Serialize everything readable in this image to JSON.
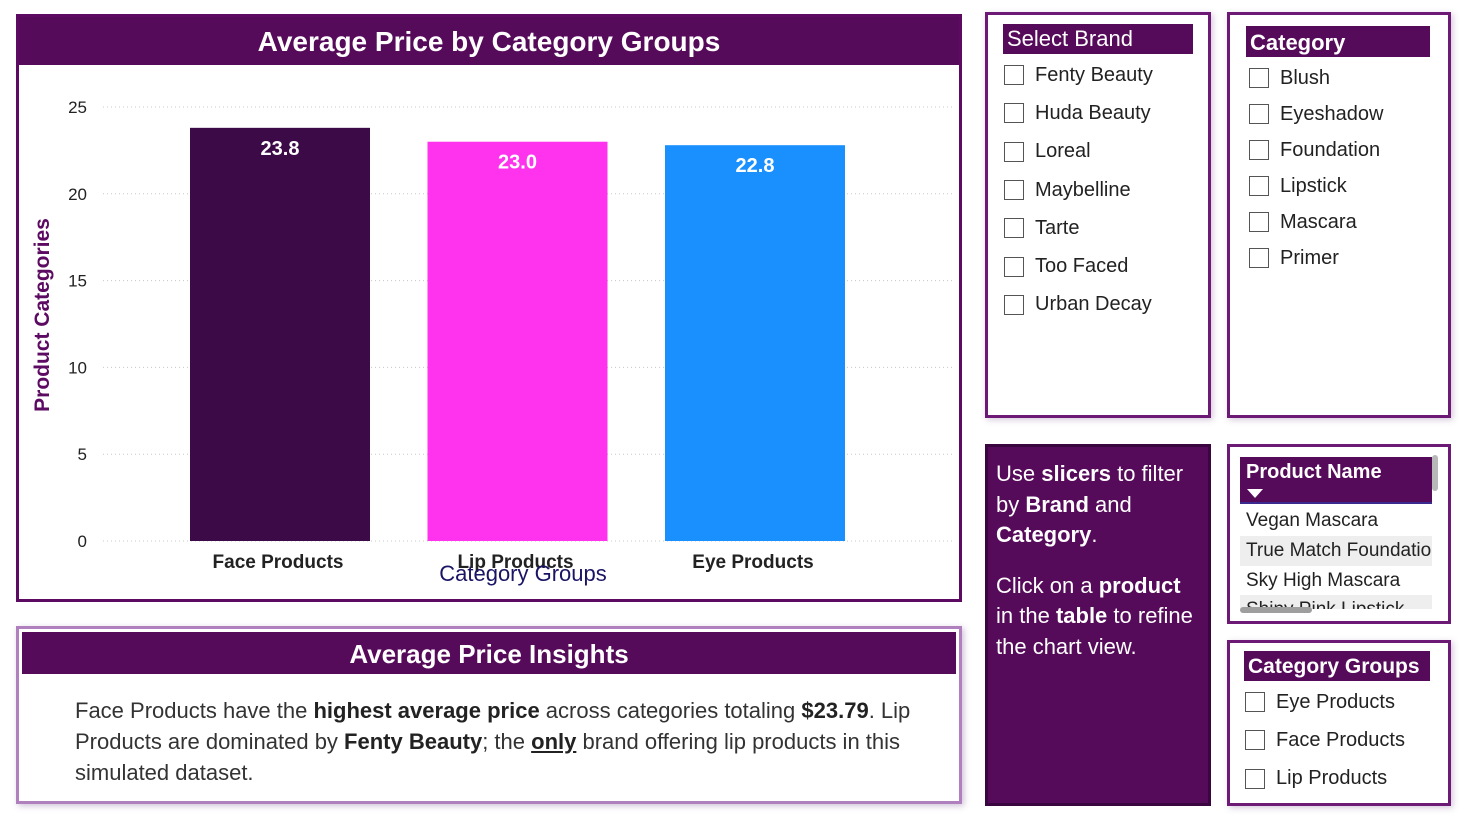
{
  "chart_panel": {
    "title": "Average Price by Category Groups"
  },
  "chart_data": {
    "type": "bar",
    "title": "Average Price by Category Groups",
    "categories": [
      "Face Products",
      "Lip Products",
      "Eye Products"
    ],
    "values": [
      23.8,
      23.0,
      22.8
    ],
    "value_labels": [
      "23.8",
      "23.0",
      "22.8"
    ],
    "colors": [
      "#3c0a46",
      "#ff33ee",
      "#1a90ff"
    ],
    "xlabel": "Category Groups",
    "ylabel": "Product Categories",
    "ylim": [
      0,
      25
    ],
    "yticks": [
      "0",
      "5",
      "10",
      "15",
      "20",
      "25"
    ],
    "grid": true
  },
  "insights": {
    "title": "Average Price Insights",
    "t1": "Face Products have the ",
    "b1": "highest average price",
    "t2": " across categories totaling ",
    "b2": "$23.79",
    "t3": ". Lip Products are dominated by ",
    "b3": "Fenty Beauty",
    "t4": "; the ",
    "u1": "only",
    "t5": " brand offering lip products in this simulated dataset."
  },
  "brand_slicer": {
    "title": "Select Brand",
    "items": [
      "Fenty Beauty",
      "Huda Beauty",
      "Loreal",
      "Maybelline",
      "Tarte",
      "Too Faced",
      "Urban Decay"
    ]
  },
  "category_slicer": {
    "title": "Category",
    "items": [
      "Blush",
      "Eyeshadow",
      "Foundation",
      "Lipstick",
      "Mascara",
      "Primer"
    ]
  },
  "help": {
    "p1_a": "Use ",
    "p1_b": "slicers",
    "p1_c": " to filter by ",
    "p1_d": "Brand",
    "p1_e": " and ",
    "p1_f": "Category",
    "p1_g": ".",
    "p2_a": "Click on a ",
    "p2_b": "product",
    "p2_c": " in the ",
    "p2_d": "table",
    "p2_e": " to refine the chart view."
  },
  "product_table": {
    "header": "Product Name",
    "rows": [
      "Vegan Mascara",
      "True Match Foundation",
      "Sky High Mascara",
      "Shiny Pink Lipstick"
    ]
  },
  "groups_slicer": {
    "title": "Category Groups",
    "items": [
      "Eye Products",
      "Face Products",
      "Lip Products"
    ]
  },
  "theme": {
    "header_bg": "#560a5a",
    "axis_title": "#5c0a62"
  }
}
